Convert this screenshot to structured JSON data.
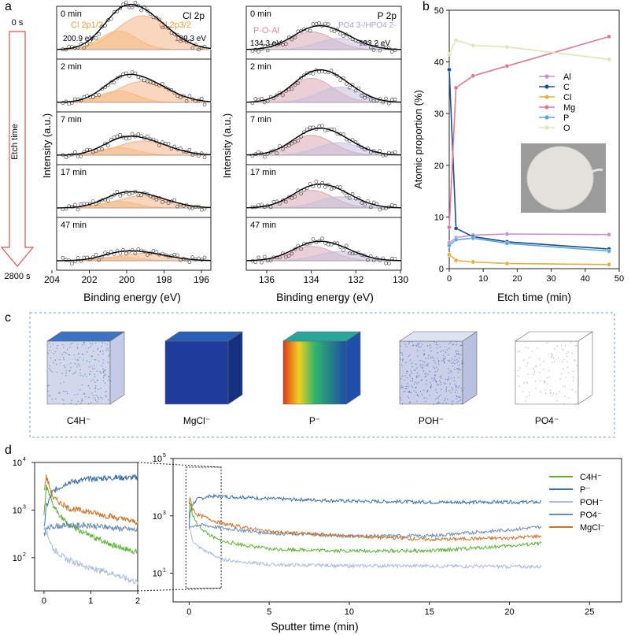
{
  "figure": {
    "panel_labels": [
      "a",
      "b",
      "c",
      "d"
    ],
    "etch_arrow": {
      "start": "0 s",
      "end": "2800 s",
      "label": "Etch time"
    }
  },
  "xps_cl": {
    "element": "Cl 2p",
    "ylabel": "Intensity (a.u.)",
    "xlabel": "Binding energy (eV)",
    "xticks": [
      "204",
      "202",
      "200",
      "198",
      "196"
    ],
    "peak_labels": [
      "Cl 2p1/2",
      "Cl 2p3/2"
    ],
    "peak_energies": [
      "200.9 eV",
      "199.3 eV"
    ],
    "rows": [
      {
        "label": "0 min",
        "scale": 1.0
      },
      {
        "label": "2 min",
        "scale": 0.62
      },
      {
        "label": "7 min",
        "scale": 0.42
      },
      {
        "label": "17 min",
        "scale": 0.36
      },
      {
        "label": "47 min",
        "scale": 0.22
      }
    ]
  },
  "xps_p": {
    "element": "P 2p",
    "ylabel": "Intensity (a.u.)",
    "xlabel": "Binding energy (eV)",
    "xticks": [
      "136",
      "134",
      "132",
      "130"
    ],
    "peak_labels": [
      "P-O-Al",
      "PO4 3-/HPO4 2-"
    ],
    "peak_energies": [
      "134.3 eV",
      "133.2 eV"
    ],
    "rows": [
      {
        "label": "0 min",
        "scale": 0.55
      },
      {
        "label": "2 min",
        "scale": 0.75
      },
      {
        "label": "7 min",
        "scale": 0.62
      },
      {
        "label": "17 min",
        "scale": 0.55
      },
      {
        "label": "47 min",
        "scale": 0.45
      }
    ]
  },
  "colors": {
    "cl_peak1": "#f2c37a",
    "cl_peak2": "#f6b48a",
    "p_peak1": "#d9a9b3",
    "p_peak2": "#c6bfdc",
    "cube_border": "#9ec1e6"
  },
  "tof_cubes": [
    {
      "label": "C4H⁻",
      "style": "sparse-top"
    },
    {
      "label": "MgCl⁻",
      "style": "dense"
    },
    {
      "label": "P⁻",
      "style": "heat"
    },
    {
      "label": "POH⁻",
      "style": "medium"
    },
    {
      "label": "PO4⁻",
      "style": "faint"
    }
  ],
  "chart_data": [
    {
      "type": "line",
      "panel": "b",
      "xlabel": "Etch time (min)",
      "ylabel": "Atomic proportion (%)",
      "xlim": [
        0,
        50
      ],
      "ylim": [
        0,
        50
      ],
      "xticks": [
        0,
        10,
        20,
        30,
        40,
        50
      ],
      "yticks": [
        0,
        10,
        20,
        30,
        40,
        50
      ],
      "x": [
        0,
        2,
        7,
        17,
        47
      ],
      "legend_position": "right",
      "series": [
        {
          "name": "Al",
          "color": "#c78fd6",
          "values": [
            5,
            6,
            6.5,
            6.7,
            6.6
          ]
        },
        {
          "name": "C",
          "color": "#1d4e8a",
          "values": [
            38.5,
            7.8,
            6.2,
            5.2,
            3.8
          ]
        },
        {
          "name": "Cl",
          "color": "#e0b040",
          "values": [
            2.7,
            1.6,
            1.3,
            1.0,
            0.8
          ]
        },
        {
          "name": "Mg",
          "color": "#d97a92",
          "values": [
            8,
            35,
            37.3,
            39.2,
            44.9
          ]
        },
        {
          "name": "P",
          "color": "#5aa8dc",
          "values": [
            4.5,
            5.6,
            5.9,
            4.9,
            3.4
          ]
        },
        {
          "name": "O",
          "color": "#dde6b8",
          "values": [
            41.5,
            44.2,
            43.2,
            42.9,
            40.5
          ]
        }
      ]
    },
    {
      "type": "line",
      "panel": "d",
      "xlabel": "Sputter time (min)",
      "yscale": "log",
      "ylim": [
        1,
        100000
      ],
      "yticks": [
        "10^1",
        "10^3",
        "10^5"
      ],
      "xlim": [
        -1,
        27
      ],
      "xticks": [
        0,
        5,
        10,
        15,
        20,
        25
      ],
      "inset": {
        "xlim": [
          -0.2,
          2
        ],
        "xticks": [
          0,
          1,
          2
        ],
        "ylim": [
          20,
          10000
        ],
        "yticks": [
          "10^2",
          "10^3",
          "10^4"
        ]
      },
      "legend_position": "right",
      "series": [
        {
          "name": "C4H⁻",
          "color": "#5bb030",
          "x": [
            0,
            0.05,
            0.2,
            0.5,
            1,
            1.5,
            2,
            5,
            10,
            15,
            20,
            22
          ],
          "values": [
            800,
            3000,
            1200,
            500,
            280,
            180,
            130,
            70,
            60,
            60,
            90,
            110
          ]
        },
        {
          "name": "P⁻",
          "color": "#3a6ea5",
          "x": [
            0,
            0.05,
            0.2,
            0.5,
            1,
            1.5,
            2,
            5,
            10,
            15,
            20,
            22
          ],
          "values": [
            400,
            1200,
            2500,
            3800,
            4500,
            4800,
            4800,
            4000,
            3300,
            3000,
            3000,
            3000
          ]
        },
        {
          "name": "POH⁻",
          "color": "#a9bbd8",
          "x": [
            0,
            0.05,
            0.2,
            0.5,
            1,
            1.5,
            2,
            5,
            10,
            15,
            20,
            22
          ],
          "values": [
            400,
            350,
            150,
            90,
            60,
            45,
            30,
            20,
            18,
            18,
            17,
            17
          ]
        },
        {
          "name": "PO4⁻",
          "color": "#6a8db5",
          "x": [
            0,
            0.05,
            0.2,
            0.5,
            1,
            1.5,
            2,
            5,
            10,
            15,
            20,
            22
          ],
          "values": [
            300,
            400,
            450,
            480,
            470,
            420,
            380,
            250,
            200,
            200,
            330,
            420
          ]
        },
        {
          "name": "MgCl⁻",
          "color": "#c8742a",
          "x": [
            0,
            0.05,
            0.2,
            0.5,
            1,
            1.5,
            2,
            5,
            10,
            15,
            20,
            22
          ],
          "values": [
            2500,
            5000,
            1800,
            1100,
            900,
            700,
            550,
            280,
            200,
            150,
            170,
            200
          ]
        }
      ]
    }
  ]
}
